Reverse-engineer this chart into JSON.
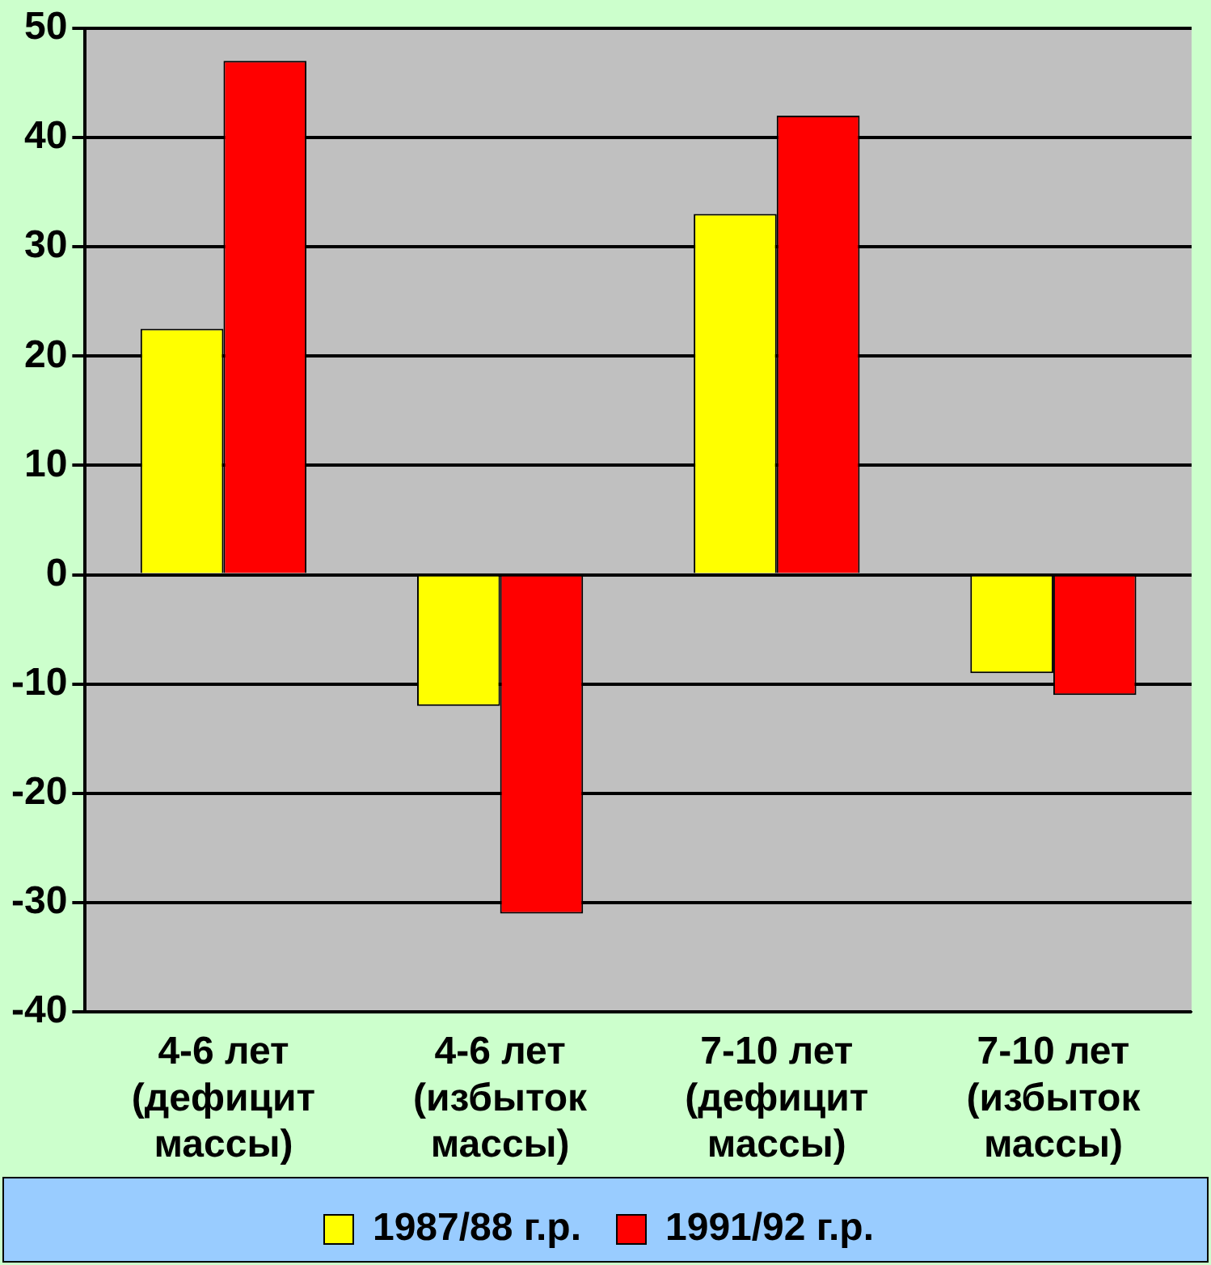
{
  "chart_data": {
    "type": "bar",
    "categories": [
      "4-6 лет\n(дефицит\nмассы)",
      "4-6 лет\n(избыток\nмассы)",
      "7-10 лет\n(дефицит\nмассы)",
      "7-10 лет\n(избыток\nмассы)"
    ],
    "series": [
      {
        "name": "1987/88 г.р.",
        "color": "#ffff00",
        "values": [
          22.5,
          -12,
          33,
          -9
        ]
      },
      {
        "name": "1991/92 г.р.",
        "color": "#ff0000",
        "values": [
          47,
          -31,
          42,
          -11
        ]
      }
    ],
    "ylim": [
      -40,
      50
    ],
    "yticks": [
      -40,
      -30,
      -20,
      -10,
      0,
      10,
      20,
      30,
      40,
      50
    ],
    "grid": "y",
    "legend": "bottom"
  }
}
